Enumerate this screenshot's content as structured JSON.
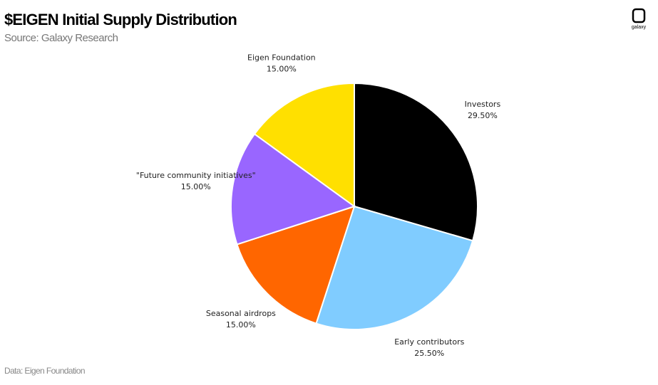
{
  "chart_data": {
    "type": "pie",
    "title": "$EIGEN Initial Supply Distribution",
    "subtitle": "Source: Galaxy Research",
    "categories": [
      "Investors",
      "Early contributors",
      "Seasonal airdrops",
      "\"Future community initiatives\"",
      "Eigen Foundation"
    ],
    "values": [
      29.5,
      25.5,
      15,
      15,
      15
    ],
    "value_labels": [
      "29.50%",
      "25.50%",
      "15.00%",
      "15.00%",
      "15.00%"
    ],
    "colors": [
      "#000000",
      "#80ccff",
      "#ff6600",
      "#9966ff",
      "#ffe000"
    ],
    "footnote": "Data: Eigen Foundation",
    "logo": "galaxy"
  }
}
